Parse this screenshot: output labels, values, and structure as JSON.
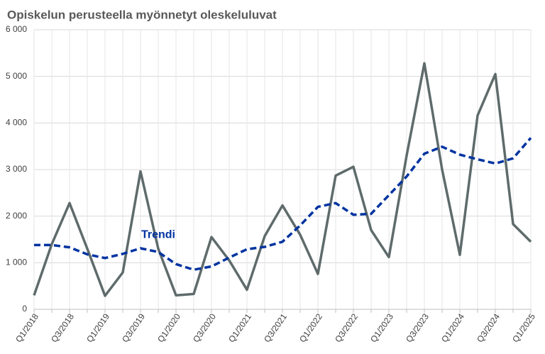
{
  "chart_data": {
    "type": "line",
    "title": "Opiskelun perusteella myönnetyt oleskeluluvat",
    "categories": [
      "Q1/2018",
      null,
      "Q3/2018",
      null,
      "Q1/2019",
      null,
      "Q3/2019",
      null,
      "Q1/2020",
      null,
      "Q3/2020",
      null,
      "Q1/2021",
      null,
      "Q3/2021",
      null,
      "Q1/2022",
      null,
      "Q3/2022",
      null,
      "Q1/2023",
      null,
      "Q3/2023",
      null,
      "Q1/2024",
      null,
      "Q3/2024",
      null,
      "Q1/2025"
    ],
    "series": [
      {
        "color": "#5f6b6b",
        "dashed": false,
        "values": [
          300,
          1400,
          2280,
          1300,
          290,
          790,
          2960,
          1300,
          300,
          330,
          1550,
          1050,
          420,
          1570,
          2230,
          1600,
          760,
          2870,
          3060,
          1700,
          1120,
          3300,
          5280,
          3000,
          1170,
          4160,
          5050,
          1830,
          1450
        ]
      },
      {
        "name": "Trendi",
        "color": "#0033a0",
        "dashed": true,
        "values": [
          1380,
          1380,
          1330,
          1180,
          1100,
          1190,
          1310,
          1230,
          970,
          850,
          920,
          1110,
          1290,
          1340,
          1450,
          1800,
          2200,
          2280,
          2030,
          2050,
          2450,
          2850,
          3340,
          3490,
          3320,
          3220,
          3130,
          3240,
          3680
        ]
      }
    ],
    "ylim": [
      0,
      6000
    ],
    "yticks": [
      0,
      {
        "value": 1000,
        "label": "1 000"
      },
      {
        "value": 2000,
        "label": "2 000"
      },
      {
        "value": 3000,
        "label": "3 000"
      },
      {
        "value": 4000,
        "label": "4 000"
      },
      {
        "value": 5000,
        "label": "5 000"
      },
      {
        "value": 6000,
        "label": "6 000"
      }
    ],
    "grid": true
  }
}
